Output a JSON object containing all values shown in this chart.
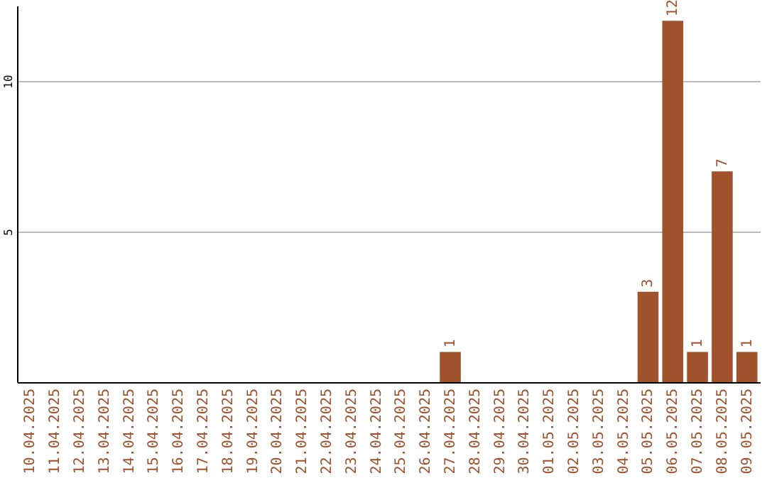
{
  "chart_data": {
    "type": "bar",
    "categories": [
      "10.04.2025",
      "11.04.2025",
      "12.04.2025",
      "13.04.2025",
      "14.04.2025",
      "15.04.2025",
      "16.04.2025",
      "17.04.2025",
      "18.04.2025",
      "19.04.2025",
      "20.04.2025",
      "21.04.2025",
      "22.04.2025",
      "23.04.2025",
      "24.04.2025",
      "25.04.2025",
      "26.04.2025",
      "27.04.2025",
      "28.04.2025",
      "29.04.2025",
      "30.04.2025",
      "01.05.2025",
      "02.05.2025",
      "03.05.2025",
      "04.05.2025",
      "05.05.2025",
      "06.05.2025",
      "07.05.2025",
      "08.05.2025",
      "09.05.2025"
    ],
    "values": [
      0,
      0,
      0,
      0,
      0,
      0,
      0,
      0,
      0,
      0,
      0,
      0,
      0,
      0,
      0,
      0,
      0,
      1,
      0,
      0,
      0,
      0,
      0,
      0,
      0,
      3,
      12,
      1,
      7,
      1
    ],
    "value_labels": [
      null,
      null,
      null,
      null,
      null,
      null,
      null,
      null,
      null,
      null,
      null,
      null,
      null,
      null,
      null,
      null,
      null,
      "1",
      null,
      null,
      null,
      null,
      null,
      null,
      null,
      "3",
      "12",
      "1",
      "7",
      "1"
    ],
    "color": "#a0522d",
    "ylim": [
      0,
      12.5
    ],
    "yticks": [
      5,
      10
    ],
    "grid": "y"
  }
}
